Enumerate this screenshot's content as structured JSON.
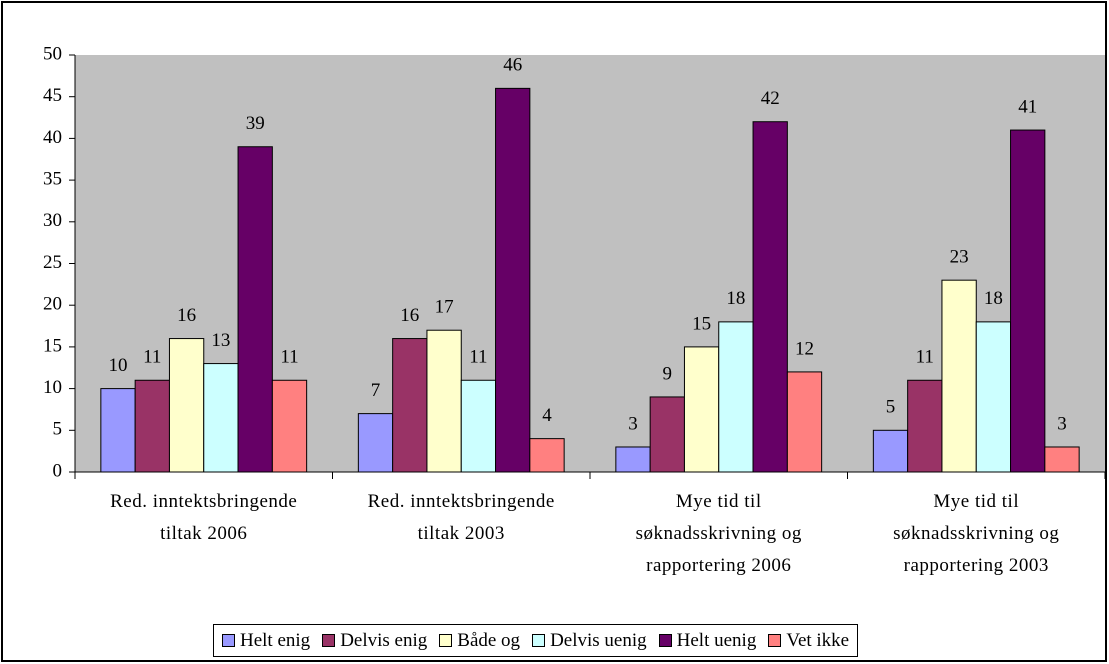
{
  "chart_data": {
    "type": "bar",
    "categories": [
      "Red. inntektsbringende tiltak 2006",
      "Red. inntektsbringende tiltak 2003",
      "Mye tid til søknadsskrivning og rapportering 2006",
      "Mye tid til søknadsskrivning og rapportering 2003"
    ],
    "series": [
      {
        "name": "Helt enig",
        "color": "#9999ff",
        "values": [
          10,
          7,
          3,
          5
        ]
      },
      {
        "name": "Delvis enig",
        "color": "#993366",
        "values": [
          11,
          16,
          9,
          11
        ]
      },
      {
        "name": "Både og",
        "color": "#ffffcc",
        "values": [
          16,
          17,
          15,
          23
        ]
      },
      {
        "name": "Delvis uenig",
        "color": "#ccffff",
        "values": [
          13,
          11,
          18,
          18
        ]
      },
      {
        "name": "Helt uenig",
        "color": "#660066",
        "values": [
          39,
          46,
          42,
          41
        ]
      },
      {
        "name": "Vet ikke",
        "color": "#ff8080",
        "values": [
          11,
          4,
          12,
          3
        ]
      }
    ],
    "ylim": [
      0,
      50
    ],
    "yticks": [
      0,
      5,
      10,
      15,
      20,
      25,
      30,
      35,
      40,
      45,
      50
    ],
    "grid": false,
    "legend": "bottom",
    "plot_background": "#c0c0c0"
  }
}
